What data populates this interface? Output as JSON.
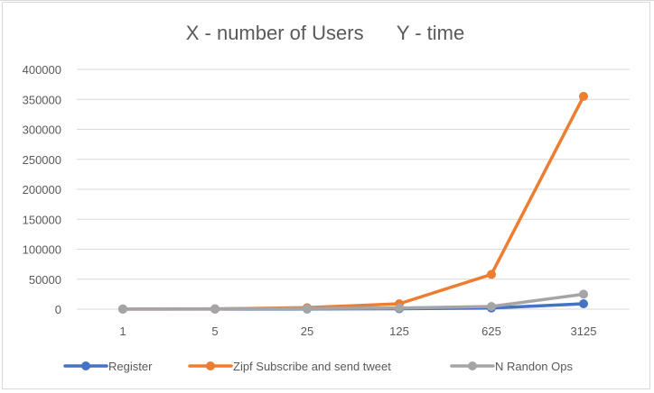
{
  "chart_data": {
    "type": "line",
    "title": "X - number of Users      Y - time",
    "xlabel": "",
    "ylabel": "",
    "categories": [
      "1",
      "5",
      "25",
      "125",
      "625",
      "3125"
    ],
    "ylim": [
      0,
      400000
    ],
    "yticks": [
      "0",
      "50000",
      "100000",
      "150000",
      "200000",
      "250000",
      "300000",
      "350000",
      "400000"
    ],
    "grid": true,
    "legend_position": "bottom",
    "series": [
      {
        "name": "Register",
        "color": "#4472c4",
        "values": [
          100,
          200,
          400,
          800,
          2000,
          9000
        ]
      },
      {
        "name": "Zipf Subscribe and send tweet",
        "color": "#ed7d31",
        "values": [
          200,
          500,
          2500,
          9000,
          58000,
          355000
        ]
      },
      {
        "name": "N Randon Ops",
        "color": "#a5a5a5",
        "values": [
          300,
          600,
          1000,
          2000,
          4500,
          25000
        ]
      }
    ]
  }
}
